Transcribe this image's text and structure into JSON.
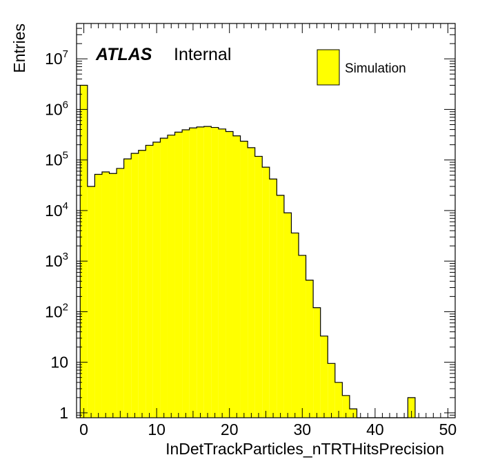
{
  "chart_data": {
    "type": "bar",
    "title": "",
    "xlabel": "InDetTrackParticles_nTRTHitsPrecision",
    "ylabel": "Entries",
    "xlim": [
      -1,
      51
    ],
    "ylim": [
      0.8,
      50000000
    ],
    "yscale": "log",
    "bin_edges_start": -0.5,
    "bin_width": 1,
    "fill_color": "#ffff00",
    "line_color": "#000000",
    "x_ticks": [
      0,
      10,
      20,
      30,
      40,
      50
    ],
    "x_tick_labels": [
      "0",
      "10",
      "20",
      "30",
      "40",
      "50"
    ],
    "y_ticks": [
      1,
      10,
      100,
      1000,
      10000,
      100000,
      1000000,
      10000000
    ],
    "y_tick_labels": [
      {
        "base": "1",
        "exp": ""
      },
      {
        "base": "10",
        "exp": ""
      },
      {
        "base": "10",
        "exp": "2"
      },
      {
        "base": "10",
        "exp": "3"
      },
      {
        "base": "10",
        "exp": "4"
      },
      {
        "base": "10",
        "exp": "5"
      },
      {
        "base": "10",
        "exp": "6"
      },
      {
        "base": "10",
        "exp": "7"
      }
    ],
    "series": [
      {
        "name": "Simulation",
        "values": [
          3000000,
          30000,
          52000,
          58000,
          54000,
          68000,
          105000,
          135000,
          155000,
          195000,
          225000,
          270000,
          310000,
          355000,
          395000,
          430000,
          450000,
          460000,
          440000,
          410000,
          365000,
          300000,
          235000,
          175000,
          118000,
          72000,
          42000,
          20000,
          9000,
          3600,
          1300,
          420,
          120,
          33,
          9.5,
          4,
          2.2,
          1.2,
          0.8,
          0.8,
          0.8,
          0.8,
          0.8,
          0.8,
          0.8,
          2,
          0,
          0,
          0,
          0
        ]
      }
    ],
    "legend": {
      "position": "top-right",
      "entries": [
        "Simulation"
      ]
    },
    "annotations": {
      "experiment": "ATLAS",
      "status": "Internal"
    }
  }
}
